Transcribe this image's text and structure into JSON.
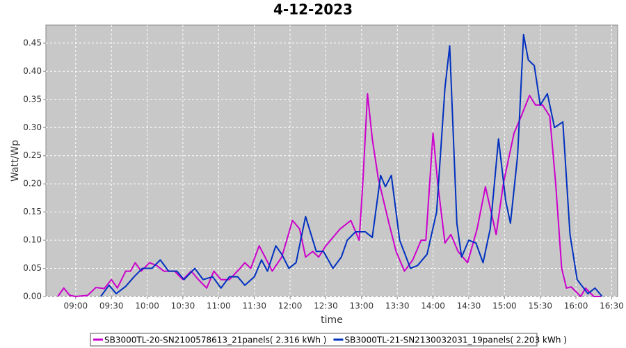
{
  "chart_data": {
    "type": "line",
    "title": "4-12-2023",
    "x_label": "time",
    "y_label": "Watt/Wp",
    "xlim": [
      "08:35",
      "16:35"
    ],
    "xticks": [
      "09:00",
      "09:30",
      "10:00",
      "10:30",
      "11:00",
      "11:30",
      "12:00",
      "12:30",
      "13:00",
      "13:30",
      "14:00",
      "14:30",
      "15:00",
      "15:30",
      "16:00",
      "16:30"
    ],
    "ylim": [
      0,
      0.482
    ],
    "yticks": [
      {
        "value": 0,
        "label": "0.00"
      },
      {
        "value": 0.05,
        "label": "0.05"
      },
      {
        "value": 0.1,
        "label": "0.10"
      },
      {
        "value": 0.15,
        "label": "0.15"
      },
      {
        "value": 0.2,
        "label": "0.20"
      },
      {
        "value": 0.25,
        "label": "0.25"
      },
      {
        "value": 0.3,
        "label": "0.30"
      },
      {
        "value": 0.35,
        "label": "0.35"
      },
      {
        "value": 0.4,
        "label": "0.40"
      },
      {
        "value": 0.45,
        "label": "0.45"
      }
    ],
    "grid": true,
    "legend": "bottom",
    "series": [
      {
        "name": "SB3000TL-20-SN2100578613_21panels( 2.316 kWh )",
        "color": "#cc00cc",
        "x": [
          "08:45",
          "08:50",
          "08:55",
          "09:00",
          "09:10",
          "09:17",
          "09:24",
          "09:30",
          "09:35",
          "09:42",
          "09:46",
          "09:50",
          "09:55",
          "10:02",
          "10:08",
          "10:14",
          "10:23",
          "10:30",
          "10:37",
          "10:43",
          "10:50",
          "10:56",
          "11:02",
          "11:09",
          "11:18",
          "11:22",
          "11:27",
          "11:34",
          "11:39",
          "11:45",
          "11:53",
          "12:02",
          "12:08",
          "12:13",
          "12:19",
          "12:24",
          "12:30",
          "12:42",
          "12:51",
          "12:58",
          "13:01",
          "13:05",
          "13:09",
          "13:14",
          "13:23",
          "13:29",
          "13:36",
          "13:43",
          "13:50",
          "13:54",
          "14:00",
          "14:04",
          "14:10",
          "14:15",
          "14:21",
          "14:29",
          "14:37",
          "14:44",
          "14:53",
          "14:59",
          "15:08",
          "15:14",
          "15:21",
          "15:26",
          "15:32",
          "15:38",
          "15:43",
          "15:48",
          "15:52",
          "15:56",
          "16:04",
          "16:08",
          "16:15",
          "16:21"
        ],
        "values": [
          0,
          0.015,
          0.002,
          0,
          0.002,
          0.016,
          0.014,
          0.03,
          0.015,
          0.045,
          0.045,
          0.06,
          0.045,
          0.06,
          0.055,
          0.045,
          0.045,
          0.03,
          0.045,
          0.03,
          0.015,
          0.045,
          0.03,
          0.03,
          0.05,
          0.06,
          0.05,
          0.09,
          0.07,
          0.045,
          0.07,
          0.135,
          0.12,
          0.07,
          0.08,
          0.07,
          0.09,
          0.12,
          0.135,
          0.1,
          0.2,
          0.36,
          0.28,
          0.21,
          0.13,
          0.08,
          0.045,
          0.065,
          0.1,
          0.1,
          0.29,
          0.2,
          0.095,
          0.11,
          0.08,
          0.06,
          0.12,
          0.195,
          0.11,
          0.2,
          0.29,
          0.32,
          0.357,
          0.34,
          0.34,
          0.32,
          0.2,
          0.05,
          0.015,
          0.017,
          0,
          0.015,
          0,
          0
        ]
      },
      {
        "name": "SB3000TL-21-SN2130032031_19panels( 2.203 kWh )",
        "color": "#0030c0",
        "x": [
          "09:21",
          "09:28",
          "09:34",
          "09:42",
          "09:49",
          "09:56",
          "10:04",
          "10:11",
          "10:18",
          "10:25",
          "10:31",
          "10:40",
          "10:47",
          "10:55",
          "11:02",
          "11:09",
          "11:16",
          "11:22",
          "11:30",
          "11:36",
          "11:41",
          "11:48",
          "11:53",
          "11:59",
          "12:05",
          "12:13",
          "12:22",
          "12:28",
          "12:36",
          "12:43",
          "12:48",
          "12:55",
          "13:03",
          "13:09",
          "13:16",
          "13:20",
          "13:25",
          "13:32",
          "13:41",
          "13:47",
          "13:55",
          "14:03",
          "14:10",
          "14:14",
          "14:20",
          "14:24",
          "14:30",
          "14:36",
          "14:42",
          "14:48",
          "14:55",
          "15:01",
          "15:05",
          "15:11",
          "15:16",
          "15:20",
          "15:25",
          "15:30",
          "15:36",
          "15:42",
          "15:49",
          "15:55",
          "16:01",
          "16:10",
          "16:16",
          "16:22"
        ],
        "values": [
          0,
          0.02,
          0.005,
          0.018,
          0.035,
          0.05,
          0.05,
          0.065,
          0.045,
          0.045,
          0.03,
          0.05,
          0.03,
          0.035,
          0.015,
          0.035,
          0.035,
          0.02,
          0.035,
          0.065,
          0.045,
          0.09,
          0.075,
          0.05,
          0.06,
          0.142,
          0.08,
          0.08,
          0.05,
          0.07,
          0.1,
          0.115,
          0.115,
          0.105,
          0.215,
          0.195,
          0.215,
          0.1,
          0.05,
          0.055,
          0.075,
          0.15,
          0.37,
          0.445,
          0.13,
          0.07,
          0.1,
          0.095,
          0.06,
          0.12,
          0.28,
          0.17,
          0.13,
          0.25,
          0.465,
          0.42,
          0.41,
          0.34,
          0.36,
          0.3,
          0.31,
          0.11,
          0.03,
          0.005,
          0.015,
          0
        ]
      }
    ]
  }
}
